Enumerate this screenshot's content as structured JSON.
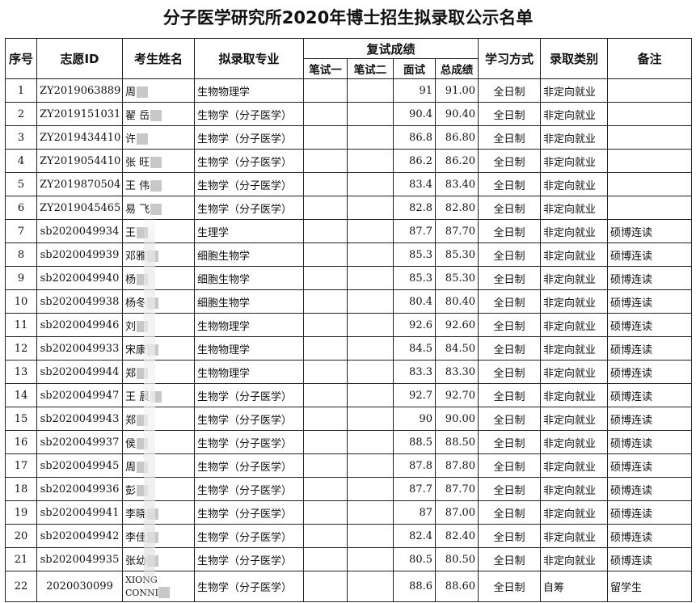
{
  "title": "分子医学研究所2020年博士招生拟录取公示名单",
  "headers": {
    "no": "序号",
    "id": "志愿ID",
    "name": "考生姓名",
    "major": "拟录取专业",
    "retest": "复试成绩",
    "written1": "笔试一",
    "written2": "笔试二",
    "interview": "面试",
    "total": "总成绩",
    "mode": "学习方式",
    "category": "录取类别",
    "remark": "备注"
  },
  "rows": [
    {
      "no": "1",
      "id": "ZY2019063889",
      "name": "周",
      "major": "生物物理学",
      "interview": "91",
      "total": "91.00",
      "mode": "全日制",
      "category": "非定向就业",
      "remark": ""
    },
    {
      "no": "2",
      "id": "ZY2019151031",
      "name": "翟 岳",
      "major": "生物学（分子医学）",
      "interview": "90.4",
      "total": "90.40",
      "mode": "全日制",
      "category": "非定向就业",
      "remark": ""
    },
    {
      "no": "3",
      "id": "ZY2019434410",
      "name": "许",
      "major": "生物学（分子医学）",
      "interview": "86.8",
      "total": "86.80",
      "mode": "全日制",
      "category": "非定向就业",
      "remark": ""
    },
    {
      "no": "4",
      "id": "ZY2019054410",
      "name": "张 旺",
      "major": "生物学（分子医学）",
      "interview": "86.2",
      "total": "86.20",
      "mode": "全日制",
      "category": "非定向就业",
      "remark": ""
    },
    {
      "no": "5",
      "id": "ZY2019870504",
      "name": "王 伟",
      "major": "生物学（分子医学）",
      "interview": "83.4",
      "total": "83.40",
      "mode": "全日制",
      "category": "非定向就业",
      "remark": ""
    },
    {
      "no": "6",
      "id": "ZY2019045465",
      "name": "易 飞",
      "major": "生物学（分子医学）",
      "interview": "82.8",
      "total": "82.80",
      "mode": "全日制",
      "category": "非定向就业",
      "remark": ""
    },
    {
      "no": "7",
      "id": "sb2020049934",
      "name": "王",
      "major": "生理学",
      "interview": "87.7",
      "total": "87.70",
      "mode": "全日制",
      "category": "非定向就业",
      "remark": "硕博连读"
    },
    {
      "no": "8",
      "id": "sb2020049939",
      "name": "邓雅",
      "major": "细胞生物学",
      "interview": "85.3",
      "total": "85.30",
      "mode": "全日制",
      "category": "非定向就业",
      "remark": "硕博连读"
    },
    {
      "no": "9",
      "id": "sb2020049940",
      "name": "杨",
      "major": "细胞生物学",
      "interview": "85.3",
      "total": "85.30",
      "mode": "全日制",
      "category": "非定向就业",
      "remark": "硕博连读"
    },
    {
      "no": "10",
      "id": "sb2020049938",
      "name": "杨冬",
      "major": "细胞生物学",
      "interview": "80.4",
      "total": "80.40",
      "mode": "全日制",
      "category": "非定向就业",
      "remark": "硕博连读"
    },
    {
      "no": "11",
      "id": "sb2020049946",
      "name": "刘",
      "major": "生物物理学",
      "interview": "92.6",
      "total": "92.60",
      "mode": "全日制",
      "category": "非定向就业",
      "remark": "硕博连读"
    },
    {
      "no": "12",
      "id": "sb2020049933",
      "name": "宋康",
      "major": "生物物理学",
      "interview": "84.5",
      "total": "84.50",
      "mode": "全日制",
      "category": "非定向就业",
      "remark": "硕博连读"
    },
    {
      "no": "13",
      "id": "sb2020049944",
      "name": "郑",
      "major": "生物物理学",
      "interview": "83.3",
      "total": "83.30",
      "mode": "全日制",
      "category": "非定向就业",
      "remark": "硕博连读"
    },
    {
      "no": "14",
      "id": "sb2020049947",
      "name": "王 晨",
      "major": "生物学（分子医学）",
      "interview": "92.7",
      "total": "92.70",
      "mode": "全日制",
      "category": "非定向就业",
      "remark": "硕博连读"
    },
    {
      "no": "15",
      "id": "sb2020049943",
      "name": "郑",
      "major": "生物学（分子医学）",
      "interview": "90",
      "total": "90.00",
      "mode": "全日制",
      "category": "非定向就业",
      "remark": "硕博连读"
    },
    {
      "no": "16",
      "id": "sb2020049937",
      "name": "侯",
      "major": "生物学（分子医学）",
      "interview": "88.5",
      "total": "88.50",
      "mode": "全日制",
      "category": "非定向就业",
      "remark": "硕博连读"
    },
    {
      "no": "17",
      "id": "sb2020049945",
      "name": "周",
      "major": "生物学（分子医学）",
      "interview": "87.8",
      "total": "87.80",
      "mode": "全日制",
      "category": "非定向就业",
      "remark": "硕博连读"
    },
    {
      "no": "18",
      "id": "sb2020049936",
      "name": "彭",
      "major": "生物学（分子医学）",
      "interview": "87.7",
      "total": "87.70",
      "mode": "全日制",
      "category": "非定向就业",
      "remark": "硕博连读"
    },
    {
      "no": "19",
      "id": "sb2020049941",
      "name": "李晓",
      "major": "生物学（分子医学）",
      "interview": "87",
      "total": "87.00",
      "mode": "全日制",
      "category": "非定向就业",
      "remark": "硕博连读"
    },
    {
      "no": "20",
      "id": "sb2020049942",
      "name": "李佳",
      "major": "生物学（分子医学）",
      "interview": "82.4",
      "total": "82.40",
      "mode": "全日制",
      "category": "非定向就业",
      "remark": "硕博连读"
    },
    {
      "no": "21",
      "id": "sb2020049935",
      "name": "张幼",
      "major": "生物学（分子医学）",
      "interview": "80.5",
      "total": "80.50",
      "mode": "全日制",
      "category": "非定向就业",
      "remark": "硕博连读"
    },
    {
      "no": "22",
      "id": "2020030099",
      "name": "XIONG CONNI",
      "major": "生物学（分子医学）",
      "interview": "88.6",
      "total": "88.60",
      "mode": "全日制",
      "category": "自筹",
      "remark": "留学生"
    }
  ]
}
